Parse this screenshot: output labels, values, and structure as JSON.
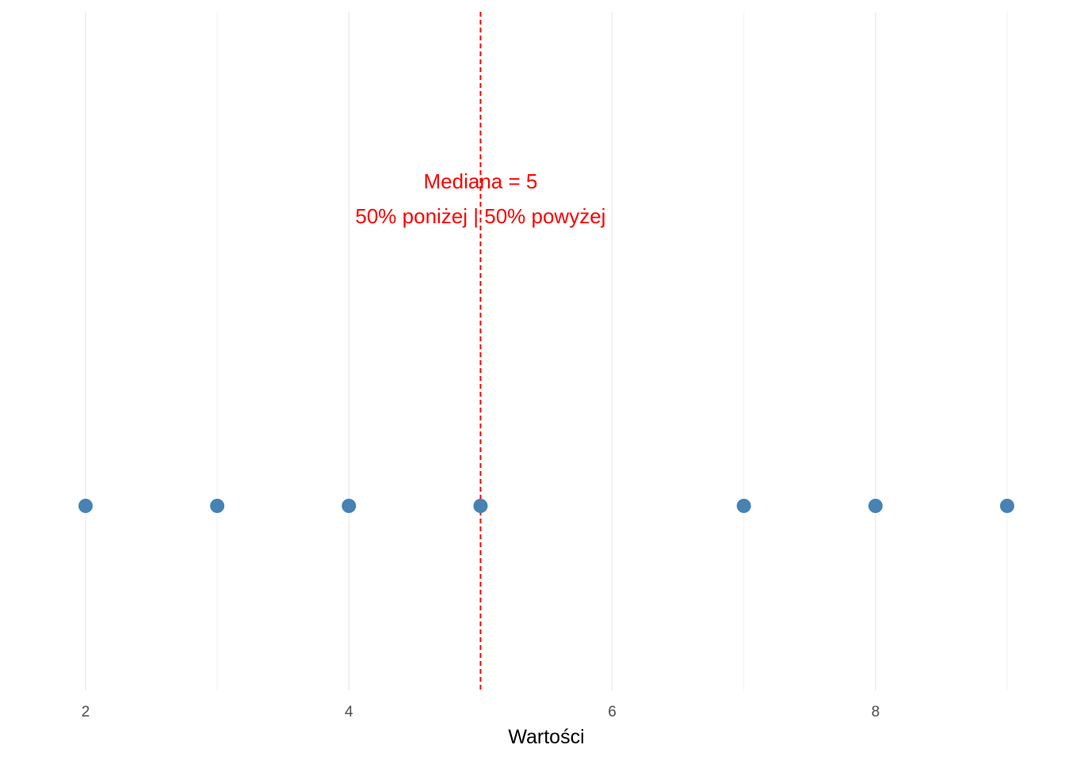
{
  "chart_data": {
    "type": "scatter",
    "title": "",
    "xlabel": "Wartości",
    "ylabel": "",
    "x": [
      2,
      3,
      4,
      5,
      7,
      8,
      9
    ],
    "y": [
      0,
      0,
      0,
      0,
      0,
      0,
      0
    ],
    "x_ticks": [
      2,
      4,
      6,
      8
    ],
    "x_tick_labels": [
      "2",
      "4",
      "6",
      "8"
    ],
    "x_minor_gridlines": [
      3,
      5,
      7,
      9
    ],
    "xlim": [
      2,
      9
    ],
    "y_axis_visible": false,
    "grid": "vertical",
    "legend": "none",
    "point_color": "#4682B4",
    "median": {
      "value": 5,
      "line_style": "dashed",
      "color": "#FF0000",
      "label_line1": "Mediana = 5",
      "label_line2": "50% poniżej | 50% powyżej"
    }
  }
}
